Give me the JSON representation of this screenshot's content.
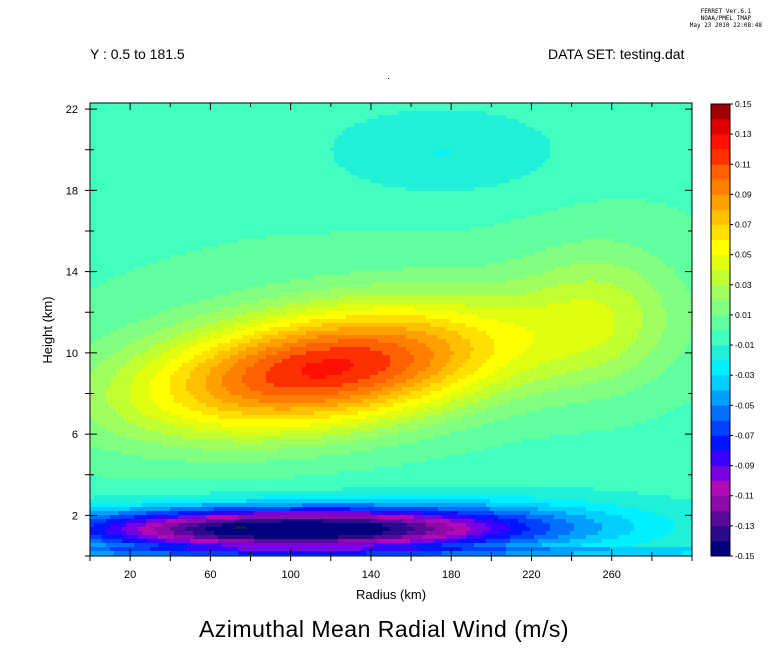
{
  "header": {
    "ferret_version": "FERRET Ver.6.1",
    "ferret_org": "NOAA/PMEL TMAP",
    "ferret_date": "May 23 2010 22:08:48",
    "y_range": "Y : 0.5 to 181.5",
    "data_set": "DATA SET: testing.dat"
  },
  "chart_data": {
    "type": "heatmap",
    "title": "Azimuthal Mean Radial Wind (m/s)",
    "xlabel": "Radius (km)",
    "ylabel": "Height (km)",
    "xlim": [
      0,
      300
    ],
    "ylim": [
      0,
      22.3
    ],
    "x_ticks": [
      20,
      60,
      100,
      140,
      180,
      220,
      260
    ],
    "y_ticks": [
      2,
      6,
      10,
      14,
      18,
      22
    ],
    "colorbar": {
      "levels": [
        -0.15,
        -0.14,
        -0.13,
        -0.12,
        -0.11,
        -0.1,
        -0.09,
        -0.08,
        -0.07,
        -0.06,
        -0.05,
        -0.04,
        -0.03,
        -0.02,
        -0.01,
        0.0,
        0.01,
        0.02,
        0.03,
        0.04,
        0.05,
        0.06,
        0.07,
        0.08,
        0.09,
        0.1,
        0.11,
        0.12,
        0.13,
        0.14,
        0.15
      ],
      "labels": [
        "0.15",
        "0.13",
        "0.11",
        "0.09",
        "0.07",
        "0.05",
        "0.03",
        "0.01",
        "-0.01",
        "-0.03",
        "-0.05",
        "-0.07",
        "-0.09",
        "-0.11",
        "-0.13",
        "-0.15"
      ],
      "colors": [
        "#00007f",
        "#2a0a8a",
        "#5a0a9a",
        "#8a0aaa",
        "#b00ab4",
        "#7a00e0",
        "#3a00ff",
        "#0014ff",
        "#0040ff",
        "#0070ff",
        "#00a0ff",
        "#00cfff",
        "#00f0ff",
        "#20f0d8",
        "#40ffc0",
        "#60ffa0",
        "#80ff80",
        "#a0ff60",
        "#c0ff30",
        "#e0ff10",
        "#ffff00",
        "#ffe000",
        "#ffc000",
        "#ffa000",
        "#ff8000",
        "#ff6000",
        "#ff3000",
        "#ff1000",
        "#e00000",
        "#a00000"
      ]
    },
    "features": [
      {
        "name": "positive-max",
        "x": 100,
        "y": 9.3,
        "value": 0.12
      },
      {
        "name": "negative-min",
        "x": 75,
        "y": 1.4,
        "value": -0.14
      },
      {
        "name": "upper-negative",
        "x": 165,
        "y": 20.0,
        "value": -0.01
      }
    ]
  }
}
